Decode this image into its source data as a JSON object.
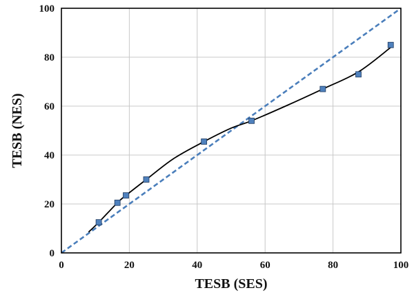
{
  "chart_data": {
    "type": "scatter",
    "title": "",
    "xlabel": "TESB (SES)",
    "ylabel": "TESB (NES)",
    "xlim": [
      0,
      100
    ],
    "ylim": [
      0,
      100
    ],
    "xticks": [
      0,
      20,
      40,
      60,
      80,
      100
    ],
    "yticks": [
      0,
      20,
      40,
      60,
      80,
      100
    ],
    "grid": true,
    "legend": "none",
    "series": [
      {
        "kind": "points",
        "marker": "square",
        "color": "#4f81bd",
        "x": [
          11,
          16.5,
          19,
          25,
          42,
          56,
          77,
          87.5,
          97
        ],
        "y": [
          12.5,
          20.5,
          23.5,
          30,
          45.5,
          54,
          67,
          73,
          85
        ]
      },
      {
        "kind": "fitted-curve",
        "color": "#000000",
        "x": [
          8,
          11,
          16.5,
          19,
          25,
          33,
          42,
          50,
          56,
          66,
          77,
          87.5,
          97
        ],
        "y": [
          8.5,
          12.5,
          20.5,
          23.5,
          30,
          38.5,
          45.5,
          51,
          54,
          60,
          67,
          74,
          84
        ]
      },
      {
        "kind": "reference-line",
        "style": "dashed",
        "color": "#4a7ebb",
        "x": [
          0,
          100
        ],
        "y": [
          0,
          100
        ]
      }
    ]
  }
}
